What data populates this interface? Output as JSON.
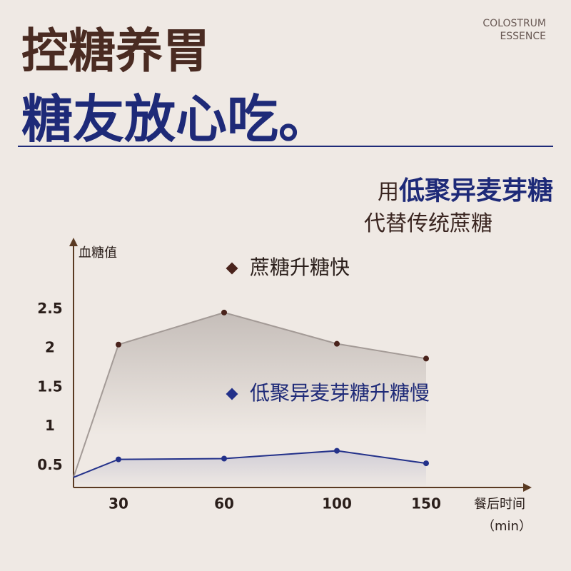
{
  "header": {
    "title": "控糖养胃",
    "subtitle": "糖友放心吃。",
    "brand": [
      "COLOSTRUM",
      "ESSENCE"
    ]
  },
  "claim": {
    "prefix": "用",
    "highlight": "低聚异麦芽糖",
    "line2": "代替传统蔗糖"
  },
  "chart_data": {
    "type": "line",
    "y_label": "血糖值",
    "x_label": "餐后时间",
    "x_unit": "（min）",
    "categories": [
      null,
      "30",
      "60",
      "100",
      "150"
    ],
    "series": [
      {
        "name": "蔗糖升糖快",
        "color": "#4a231c",
        "line_color": "#a39a96",
        "values": [
          0.35,
          2.05,
          2.46,
          2.06,
          1.87
        ]
      },
      {
        "name": "低聚异麦芽糖升糖慢",
        "color": "#23318a",
        "line_color": "#23318a",
        "values": [
          0.35,
          0.58,
          0.59,
          0.69,
          0.53
        ]
      }
    ],
    "ylim": [
      0.22,
      3.4
    ],
    "yticks": [
      0.5,
      1,
      1.5,
      2,
      2.5
    ]
  }
}
